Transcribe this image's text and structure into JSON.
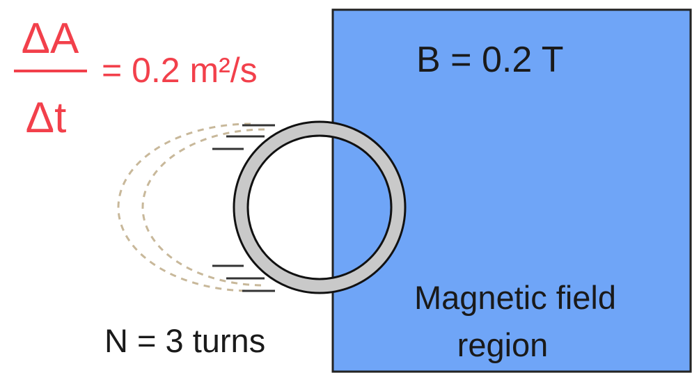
{
  "rate": {
    "numerator": "ΔA",
    "denominator": "Δt",
    "value": "= 0.2 m²/s"
  },
  "field": {
    "label": "B = 0.2 T",
    "region_line1": "Magnetic field",
    "region_line2": "region"
  },
  "coil": {
    "label": "N = 3 turns"
  }
}
